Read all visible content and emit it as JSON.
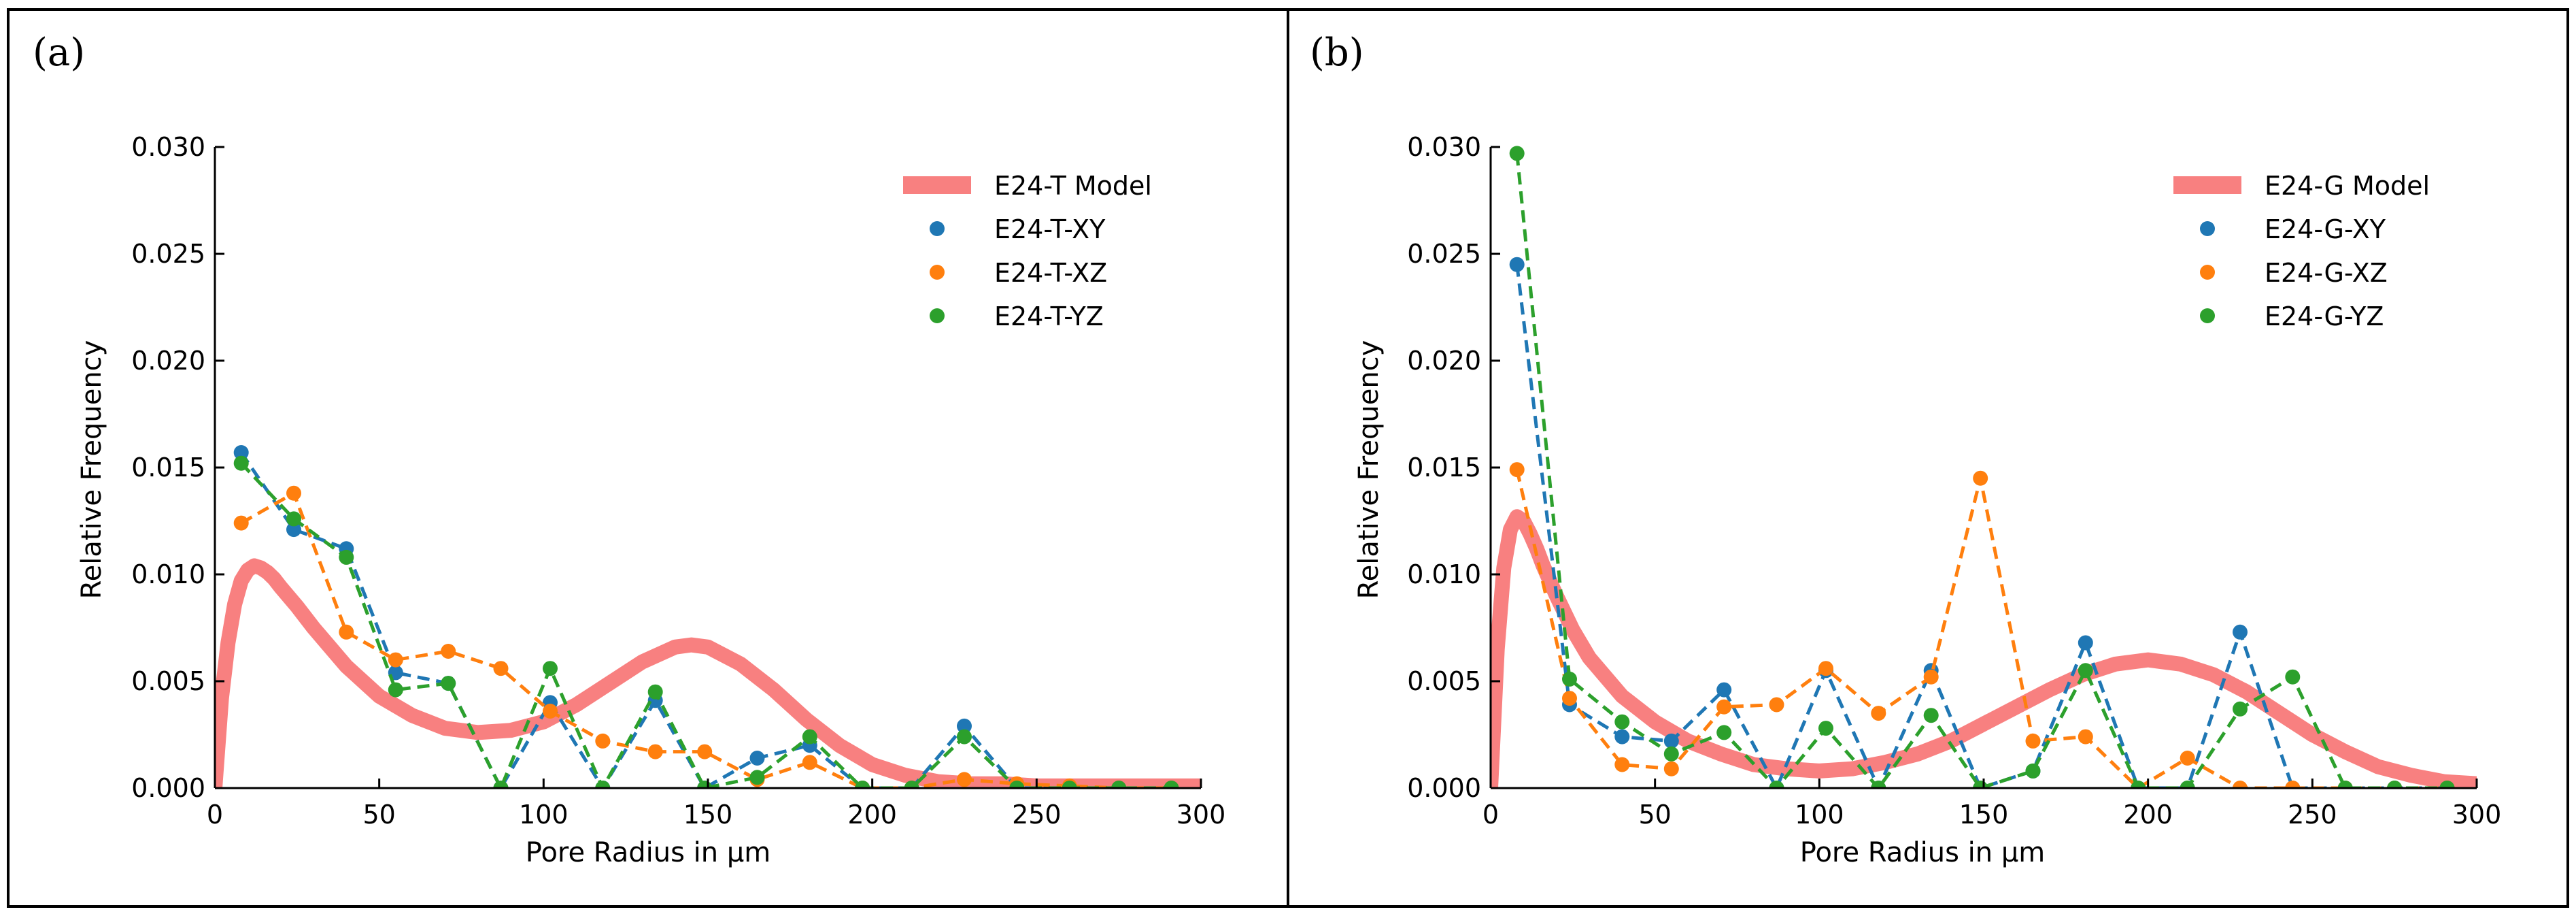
{
  "colors": {
    "model": "#f88080",
    "XY": "#1f77b4",
    "XZ": "#ff7f0e",
    "YZ": "#2ca02c"
  },
  "chart_data": [
    {
      "type": "line",
      "panel_label": "(a)",
      "xlabel": "Pore Radius in μm",
      "ylabel": "Relative Frequency",
      "xlim": [
        0,
        300
      ],
      "ylim": [
        0,
        0.03
      ],
      "xticks": [
        "0",
        "50",
        "100",
        "150",
        "200",
        "250",
        "300"
      ],
      "yticks": [
        "0.000",
        "0.005",
        "0.010",
        "0.015",
        "0.020",
        "0.025",
        "0.030"
      ],
      "legend_position": "top-right",
      "model": {
        "name": "E24-T Model",
        "x": [
          0,
          2,
          4,
          6,
          8,
          10,
          12,
          14,
          16,
          18,
          20,
          25,
          30,
          35,
          40,
          50,
          60,
          70,
          80,
          90,
          100,
          110,
          120,
          130,
          140,
          145,
          150,
          160,
          170,
          180,
          190,
          200,
          210,
          220,
          230,
          240,
          250,
          260,
          270,
          280,
          290,
          300
        ],
        "y": [
          0,
          0.0042,
          0.0068,
          0.0086,
          0.0097,
          0.0102,
          0.0104,
          0.0103,
          0.0101,
          0.0098,
          0.0094,
          0.0085,
          0.0075,
          0.0066,
          0.0057,
          0.0043,
          0.0034,
          0.0028,
          0.0026,
          0.0027,
          0.0031,
          0.0039,
          0.0049,
          0.0059,
          0.0066,
          0.0067,
          0.0066,
          0.0058,
          0.0046,
          0.0032,
          0.002,
          0.0011,
          0.0006,
          0.0003,
          0.0002,
          0.0002,
          0.0001,
          0.0001,
          0.0001,
          0.0001,
          0.0001,
          0.0001
        ]
      },
      "series": [
        {
          "name": "E24-T-XY",
          "key": "XY",
          "x": [
            8,
            24,
            40,
            55,
            71,
            87,
            102,
            118,
            134,
            149,
            165,
            181,
            197,
            212,
            228,
            244,
            260,
            275,
            291
          ],
          "y": [
            0.0157,
            0.0121,
            0.0112,
            0.0054,
            0.0049,
            0,
            0.004,
            0,
            0.0041,
            0,
            0.0014,
            0.002,
            0,
            0,
            0.0029,
            0,
            0,
            0,
            0
          ]
        },
        {
          "name": "E24-T-XZ",
          "key": "XZ",
          "x": [
            8,
            24,
            40,
            55,
            71,
            87,
            102,
            118,
            134,
            149,
            165,
            181,
            197,
            212,
            228,
            244,
            260,
            275,
            291
          ],
          "y": [
            0.0124,
            0.0138,
            0.0073,
            0.006,
            0.0064,
            0.0056,
            0.0036,
            0.0022,
            0.0017,
            0.0017,
            0.0004,
            0.0012,
            0,
            0,
            0.0004,
            0.0002,
            0.0001,
            0,
            0
          ]
        },
        {
          "name": "E24-T-YZ",
          "key": "YZ",
          "x": [
            8,
            24,
            40,
            55,
            71,
            87,
            102,
            118,
            134,
            149,
            165,
            181,
            197,
            212,
            228,
            244,
            260,
            275,
            291
          ],
          "y": [
            0.0152,
            0.0126,
            0.0108,
            0.0046,
            0.0049,
            0,
            0.0056,
            0,
            0.0045,
            0,
            0.0005,
            0.0024,
            0,
            0,
            0.0024,
            0,
            0,
            0,
            0
          ]
        }
      ]
    },
    {
      "type": "line",
      "panel_label": "(b)",
      "xlabel": "Pore Radius in μm",
      "ylabel": "Relative Frequency",
      "xlim": [
        0,
        300
      ],
      "ylim": [
        0,
        0.03
      ],
      "xticks": [
        "0",
        "50",
        "100",
        "150",
        "200",
        "250",
        "300"
      ],
      "yticks": [
        "0.000",
        "0.005",
        "0.010",
        "0.015",
        "0.020",
        "0.025",
        "0.030"
      ],
      "legend_position": "top-right",
      "model": {
        "name": "E24-G Model",
        "x": [
          0,
          2,
          4,
          6,
          8,
          10,
          12,
          14,
          16,
          18,
          20,
          25,
          30,
          40,
          50,
          60,
          70,
          80,
          90,
          100,
          110,
          120,
          130,
          140,
          150,
          160,
          170,
          180,
          190,
          200,
          210,
          220,
          230,
          240,
          250,
          260,
          270,
          280,
          290,
          300
        ],
        "y": [
          0,
          0.0065,
          0.0103,
          0.0121,
          0.0127,
          0.0125,
          0.0119,
          0.0112,
          0.0104,
          0.0097,
          0.009,
          0.0074,
          0.0061,
          0.0043,
          0.0031,
          0.0022,
          0.0016,
          0.0011,
          0.0009,
          0.0008,
          0.0009,
          0.0012,
          0.0016,
          0.0022,
          0.003,
          0.0038,
          0.0046,
          0.0053,
          0.0058,
          0.006,
          0.0058,
          0.0053,
          0.0045,
          0.0035,
          0.0025,
          0.0017,
          0.001,
          0.0006,
          0.0003,
          0.0002
        ]
      },
      "series": [
        {
          "name": "E24-G-XY",
          "key": "XY",
          "x": [
            8,
            24,
            40,
            55,
            71,
            87,
            102,
            118,
            134,
            149,
            165,
            181,
            197,
            212,
            228,
            244,
            260,
            275,
            291
          ],
          "y": [
            0.0245,
            0.0039,
            0.0024,
            0.0022,
            0.0046,
            0,
            0.0055,
            0,
            0.0055,
            0,
            0.0008,
            0.0068,
            0,
            0,
            0.0073,
            0,
            0,
            0,
            0
          ]
        },
        {
          "name": "E24-G-XZ",
          "key": "XZ",
          "x": [
            8,
            24,
            40,
            55,
            71,
            87,
            102,
            118,
            134,
            149,
            165,
            181,
            197,
            212,
            228,
            244,
            260,
            275,
            291
          ],
          "y": [
            0.0149,
            0.0042,
            0.0011,
            0.0009,
            0.0038,
            0.0039,
            0.0056,
            0.0035,
            0.0052,
            0.0145,
            0.0022,
            0.0024,
            0,
            0.0014,
            0,
            0,
            0,
            0,
            0
          ]
        },
        {
          "name": "E24-G-YZ",
          "key": "YZ",
          "x": [
            8,
            24,
            40,
            55,
            71,
            87,
            102,
            118,
            134,
            149,
            165,
            181,
            197,
            212,
            228,
            244,
            260,
            275,
            291
          ],
          "y": [
            0.0297,
            0.0051,
            0.0031,
            0.0016,
            0.0026,
            0,
            0.0028,
            0,
            0.0034,
            0,
            0.0008,
            0.0055,
            0,
            0,
            0.0037,
            0.0052,
            0,
            0,
            0
          ]
        }
      ]
    }
  ]
}
